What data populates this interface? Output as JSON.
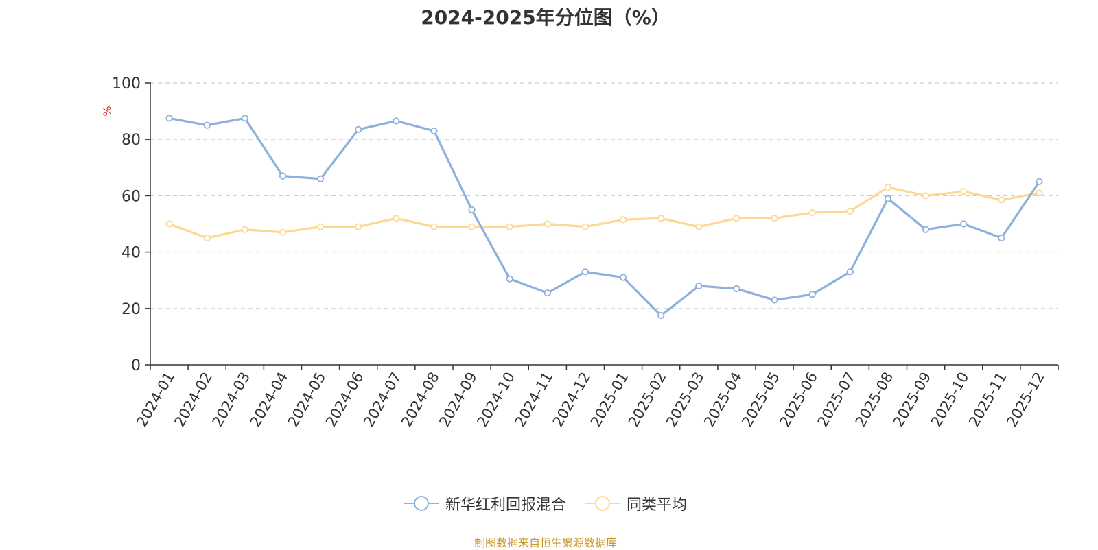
{
  "chart_data": {
    "type": "line",
    "title": "2024-2025年分位图（%）",
    "ylabel": "%",
    "xlabel": "",
    "ylim": [
      0,
      100
    ],
    "yticks": [
      0,
      20,
      40,
      60,
      80,
      100
    ],
    "grid": true,
    "legend_position": "bottom-center",
    "categories": [
      "2024-01",
      "2024-02",
      "2024-03",
      "2024-04",
      "2024-05",
      "2024-06",
      "2024-07",
      "2024-08",
      "2024-09",
      "2024-10",
      "2024-11",
      "2024-12",
      "2025-01",
      "2025-02",
      "2025-03",
      "2025-04",
      "2025-05",
      "2025-06",
      "2025-07",
      "2025-08",
      "2025-09",
      "2025-10",
      "2025-11",
      "2025-12"
    ],
    "series": [
      {
        "name": "新华红利回报混合",
        "color": "#8eb0dc",
        "values": [
          87.5,
          85,
          87.5,
          67,
          66,
          83.5,
          86.5,
          83,
          55,
          30.5,
          25.5,
          33,
          31,
          17.5,
          28,
          27,
          23,
          25,
          33,
          59,
          48,
          50,
          45,
          65
        ]
      },
      {
        "name": "同类平均",
        "color": "#fcd892",
        "values": [
          50,
          45,
          48,
          47,
          49,
          49,
          52,
          49,
          49,
          49,
          50,
          49,
          51.5,
          52,
          49,
          52,
          52,
          54,
          54.5,
          63,
          60,
          61.5,
          58.5,
          61
        ]
      }
    ]
  },
  "source": "制图数据来自恒生聚源数据库",
  "colors": {
    "axis": "#333333",
    "grid": "#cccccc",
    "ylabel": "#e02020",
    "source": "#c8962a"
  }
}
